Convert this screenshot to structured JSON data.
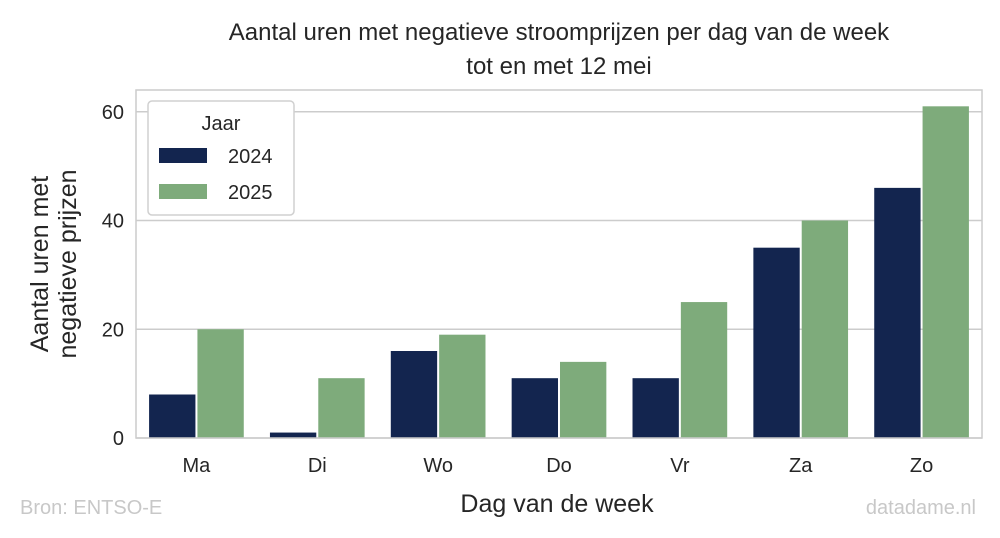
{
  "chart_data": {
    "type": "bar",
    "title": "Aantal uren met negatieve stroomprijzen per dag van de week",
    "subtitle": "tot en met 12 mei",
    "xlabel": "Dag van de week",
    "ylabel_lines": [
      "Aantal uren met",
      "negatieve prijzen"
    ],
    "categories": [
      "Ma",
      "Di",
      "Wo",
      "Do",
      "Vr",
      "Za",
      "Zo"
    ],
    "series": [
      {
        "name": "2024",
        "color": "#13254f",
        "values": [
          8,
          1,
          16,
          11,
          11,
          35,
          46
        ]
      },
      {
        "name": "2025",
        "color": "#7eab7b",
        "values": [
          20,
          11,
          19,
          14,
          25,
          40,
          61
        ]
      }
    ],
    "ylim": [
      0,
      64
    ],
    "yticks": [
      0,
      20,
      40,
      60
    ],
    "grid": "horizontal",
    "legend": {
      "title": "Jaar",
      "placement": "top-left"
    }
  },
  "footer": {
    "source": "Bron: ENTSO-E",
    "credit": "datadame.nl"
  }
}
